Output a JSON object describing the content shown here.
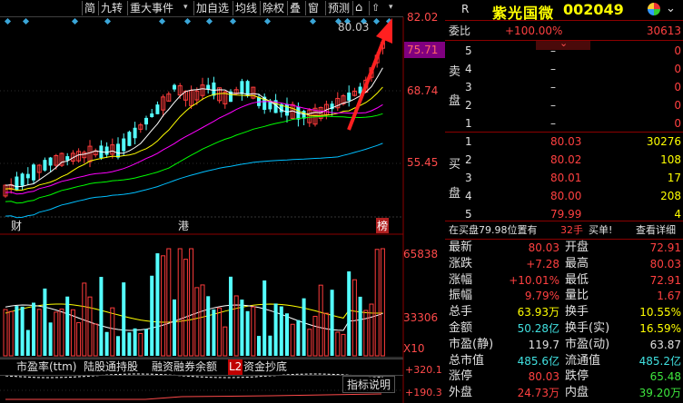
{
  "toolbar": {
    "items": [
      "简",
      "九转",
      "重大事件",
      "加自选",
      "均线",
      "除权",
      "叠",
      "窗",
      "预测"
    ],
    "caret": "▾"
  },
  "chart": {
    "price_labels": [
      "82.02",
      "75.71",
      "68.74",
      "55.45"
    ],
    "peak_label": "80.03",
    "event_marks": [
      "财",
      "港",
      "榜"
    ],
    "volume_labels": [
      "65838",
      "33306",
      "X10"
    ],
    "indicator_price_labels": [
      "+320.1",
      "+190.3"
    ],
    "indicator_button": "指标说明",
    "tabs": [
      "市盈率(ttm)",
      "陆股通持股",
      "融资融券余额",
      "资金抄底"
    ],
    "tab_badge": "L2"
  },
  "panel": {
    "r_badge": "R",
    "stock_name": "紫光国微",
    "stock_code": "002049",
    "weibi_label": "委比",
    "weibi_value": "+100.00%",
    "weibi_count": "30613",
    "sell_side_label": [
      "卖",
      "盘"
    ],
    "buy_side_label": [
      "买",
      "盘"
    ],
    "sell": [
      {
        "n": "5",
        "price": "–",
        "vol": "0"
      },
      {
        "n": "4",
        "price": "–",
        "vol": "0"
      },
      {
        "n": "3",
        "price": "–",
        "vol": "0"
      },
      {
        "n": "2",
        "price": "–",
        "vol": "0"
      },
      {
        "n": "1",
        "price": "–",
        "vol": "0"
      }
    ],
    "buy": [
      {
        "n": "1",
        "price": "80.03",
        "vol": "30276"
      },
      {
        "n": "2",
        "price": "80.02",
        "vol": "108"
      },
      {
        "n": "3",
        "price": "80.01",
        "vol": "17"
      },
      {
        "n": "4",
        "price": "80.00",
        "vol": "208"
      },
      {
        "n": "5",
        "price": "79.99",
        "vol": "4"
      }
    ],
    "info_left": "在买盘79.98位置有",
    "info_mid": "32手",
    "info_act": "买单!",
    "info_detail": "查看详细",
    "stats": [
      {
        "l1": "最新",
        "v1": "80.03",
        "c1": "red",
        "l2": "开盘",
        "v2": "72.91",
        "c2": "red"
      },
      {
        "l1": "涨跌",
        "v1": "+7.28",
        "c1": "red",
        "l2": "最高",
        "v2": "80.03",
        "c2": "red"
      },
      {
        "l1": "涨幅",
        "v1": "+10.01%",
        "c1": "red",
        "l2": "最低",
        "v2": "72.91",
        "c2": "red"
      },
      {
        "l1": "振幅",
        "v1": "9.79%",
        "c1": "red",
        "l2": "量比",
        "v2": "1.67",
        "c2": "red"
      },
      {
        "l1": "总手",
        "v1": "63.93万",
        "c1": "yel",
        "l2": "换手",
        "v2": "10.55%",
        "c2": "yel"
      },
      {
        "l1": "金额",
        "v1": "50.28亿",
        "c1": "cyan",
        "l2": "换手(实)",
        "v2": "16.59%",
        "c2": "yel"
      },
      {
        "l1": "市盈(静)",
        "v1": "119.7",
        "c1": "wht",
        "l2": "市盈(动)",
        "v2": "63.87",
        "c2": "wht"
      },
      {
        "l1": "总市值",
        "v1": "485.6亿",
        "c1": "cyan",
        "l2": "流通值",
        "v2": "485.2亿",
        "c2": "cyan"
      },
      {
        "l1": "涨停",
        "v1": "80.03",
        "c1": "red",
        "l2": "跌停",
        "v2": "65.48",
        "c2": "grn"
      },
      {
        "l1": "外盘",
        "v1": "24.73万",
        "c1": "red",
        "l2": "内盘",
        "v2": "39.20万",
        "c2": "grn"
      }
    ]
  },
  "colors": {
    "up": "#ff3c3c",
    "down": "#54ffff",
    "ma5": "#ffffff",
    "ma10": "#ffff00",
    "ma20": "#ff00ff",
    "ma30": "#00ff00",
    "ma60": "#00bfff",
    "arrow": "#ff2020"
  }
}
